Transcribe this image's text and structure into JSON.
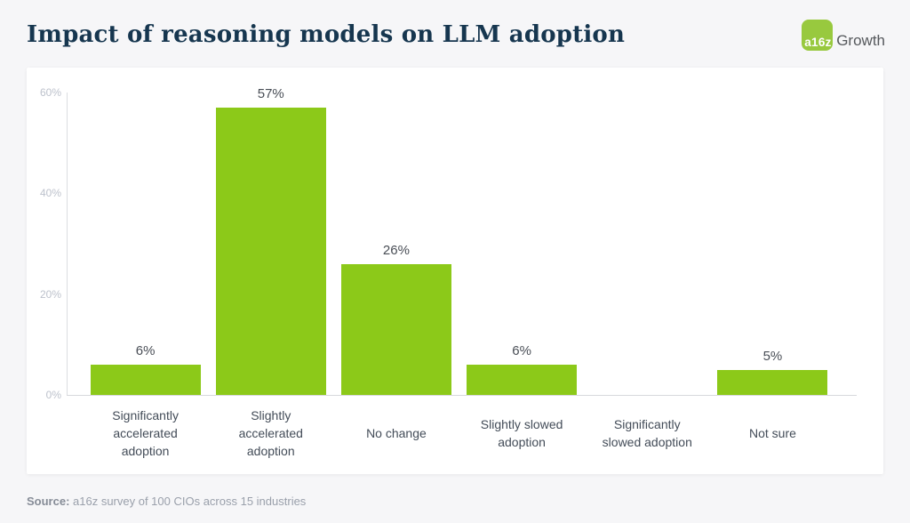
{
  "header": {
    "title": "Impact of reasoning models on LLM adoption",
    "logo": {
      "mark": "a16z",
      "suffix": "Growth"
    }
  },
  "chart_data": {
    "type": "bar",
    "title": "Impact of reasoning models on LLM adoption",
    "categories": [
      [
        "Significantly",
        "accelerated",
        "adoption"
      ],
      [
        "Slightly",
        "accelerated",
        "adoption"
      ],
      [
        "No change"
      ],
      [
        "Slightly slowed",
        "adoption"
      ],
      [
        "Significantly",
        "slowed adoption"
      ],
      [
        "Not sure"
      ]
    ],
    "values": [
      6,
      57,
      26,
      6,
      0,
      5
    ],
    "value_labels": [
      "6%",
      "57%",
      "26%",
      "6%",
      "",
      "5%"
    ],
    "xlabel": "",
    "ylabel": "",
    "ylim": [
      0,
      60
    ],
    "yticks": [
      0,
      20,
      40,
      60
    ],
    "ytick_labels": [
      "0%",
      "20%",
      "40%",
      "60%"
    ],
    "grid": false,
    "legend": false,
    "colors": {
      "bar": "#8cc919",
      "title": "#16364f",
      "axis_line": "#dcdde1",
      "ytick_text": "#bdc2cc",
      "value_text": "#494e56",
      "xlabel_text": "#434c58",
      "logo_green": "#98c93e",
      "card_bg": "#ffffff",
      "page_bg": "#f6f6f8"
    }
  },
  "footer": {
    "source_label": "Source:",
    "source_text": " a16z survey of 100 CIOs across 15 industries"
  }
}
